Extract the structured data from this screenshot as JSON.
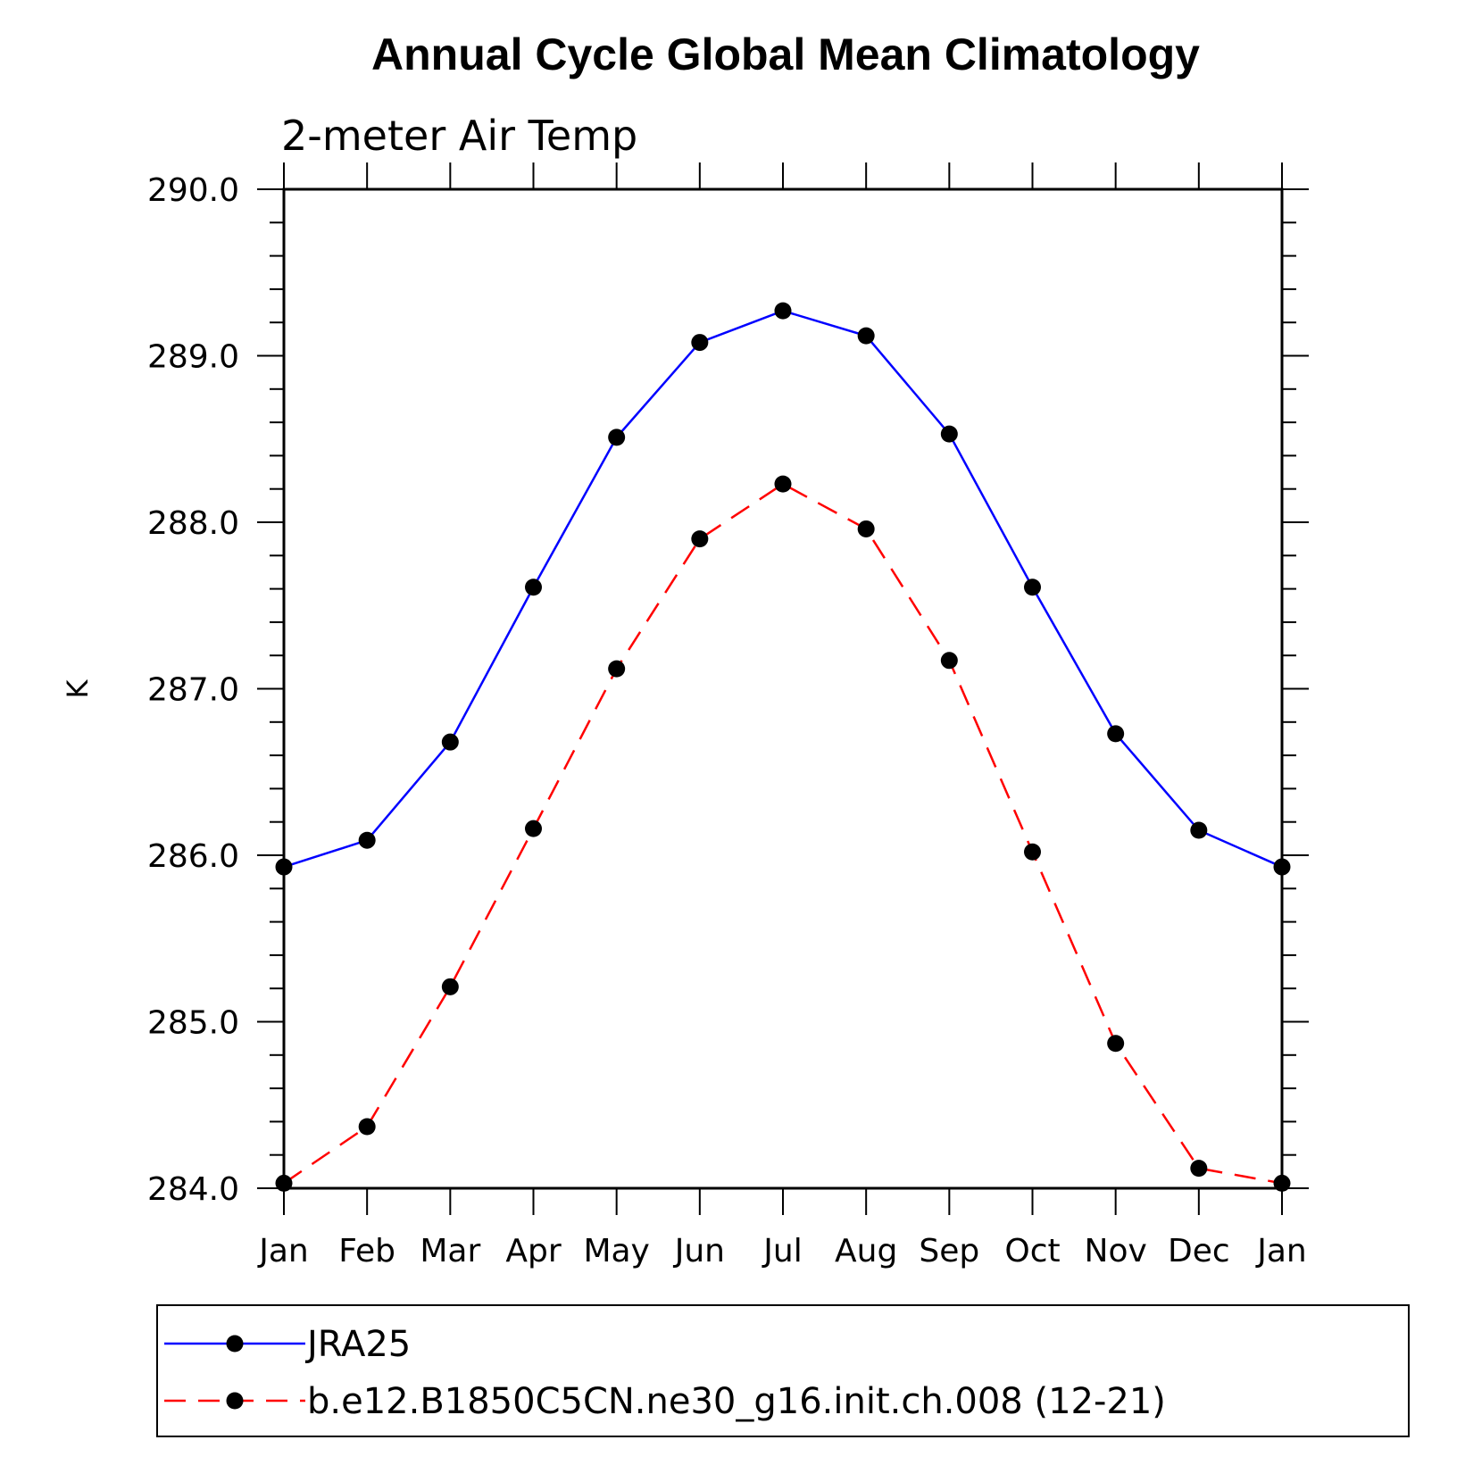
{
  "chart_data": {
    "type": "line",
    "title": "Annual Cycle Global Mean Climatology",
    "subtitle": "2-meter Air Temp",
    "ylabel": "K",
    "xlabel": "",
    "categories": [
      "Jan",
      "Feb",
      "Mar",
      "Apr",
      "May",
      "Jun",
      "Jul",
      "Aug",
      "Sep",
      "Oct",
      "Nov",
      "Dec",
      "Jan"
    ],
    "ylim": [
      284.0,
      290.0
    ],
    "yticks": [
      "284.0",
      "285.0",
      "286.0",
      "287.0",
      "288.0",
      "289.0",
      "290.0"
    ],
    "series": [
      {
        "name": "JRA25",
        "color": "#0000ff",
        "line_style": "solid",
        "marker": "filled-circle",
        "values": [
          285.93,
          286.09,
          286.68,
          287.61,
          288.51,
          289.08,
          289.27,
          289.12,
          288.53,
          287.61,
          286.73,
          286.15,
          285.93
        ]
      },
      {
        "name": "b.e12.B1850C5CN.ne30_g16.init.ch.008 (12-21)",
        "color": "#ff0000",
        "line_style": "dashed",
        "marker": "filled-circle",
        "values": [
          284.03,
          284.37,
          285.21,
          286.16,
          287.12,
          287.9,
          288.23,
          287.96,
          287.17,
          286.02,
          284.87,
          284.12,
          284.03
        ]
      }
    ],
    "marker_color": "#000000",
    "grid": false,
    "legend_position": "bottom"
  }
}
